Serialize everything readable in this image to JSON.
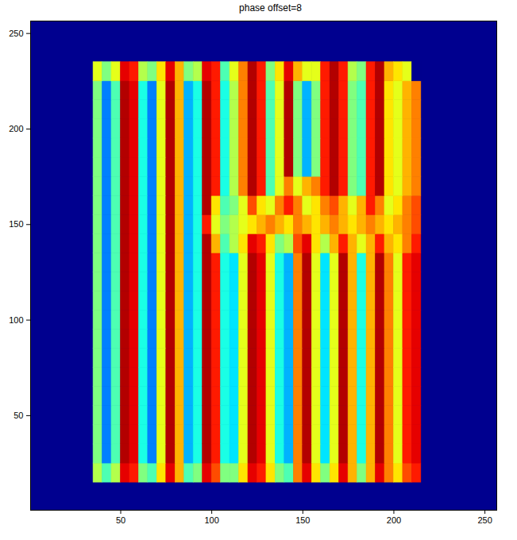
{
  "chart_data": {
    "type": "heatmap",
    "title": "phase offset=8",
    "xlim": [
      0.5,
      256.5
    ],
    "ylim": [
      0.5,
      256.5
    ],
    "xticks": [
      50,
      100,
      150,
      200,
      250
    ],
    "yticks": [
      50,
      100,
      150,
      200,
      250
    ],
    "clim": [
      0,
      1
    ],
    "background": 0,
    "x": [
      37.5,
      42.5,
      47.5,
      52.5,
      57.5,
      62.5,
      67.5,
      72.5,
      77.5,
      82.5,
      87.5,
      92.5,
      97.5,
      102.5,
      107.5,
      112.5,
      117.5,
      122.5,
      127.5,
      132.5,
      137.5,
      142.5,
      147.5,
      152.5,
      157.5,
      162.5,
      167.5,
      172.5,
      177.5,
      182.5,
      187.5,
      192.5,
      197.5,
      202.5,
      207.5,
      212.5
    ],
    "y": [
      20,
      30,
      40,
      50,
      60,
      70,
      80,
      90,
      100,
      110,
      120,
      130,
      140,
      150,
      160,
      170,
      180,
      190,
      200,
      210,
      220,
      230
    ],
    "values": [
      [
        0.55,
        0.45,
        0.55,
        0.9,
        0.85,
        0.5,
        0.45,
        0.65,
        0.9,
        0.7,
        0.45,
        0.5,
        0.9,
        0.8,
        0.5,
        0.5,
        0.65,
        0.9,
        0.85,
        0.65,
        0.5,
        0.45,
        0.75,
        0.9,
        0.65,
        0.5,
        0.65,
        0.9,
        0.7,
        0.5,
        0.7,
        0.9,
        0.75,
        0.65,
        0.8,
        0.85
      ],
      [
        0.5,
        0.25,
        0.45,
        0.95,
        0.9,
        0.4,
        0.25,
        0.6,
        0.95,
        0.7,
        0.3,
        0.4,
        0.95,
        0.85,
        0.4,
        0.35,
        0.6,
        0.95,
        0.9,
        0.6,
        0.4,
        0.3,
        0.75,
        0.95,
        0.6,
        0.35,
        0.6,
        0.95,
        0.7,
        0.4,
        0.7,
        0.95,
        0.75,
        0.6,
        0.85,
        0.9
      ],
      [
        0.5,
        0.25,
        0.45,
        0.95,
        0.9,
        0.4,
        0.25,
        0.6,
        0.95,
        0.7,
        0.3,
        0.4,
        0.95,
        0.85,
        0.4,
        0.35,
        0.6,
        0.95,
        0.9,
        0.6,
        0.4,
        0.3,
        0.75,
        0.95,
        0.6,
        0.35,
        0.6,
        0.95,
        0.7,
        0.4,
        0.7,
        0.95,
        0.75,
        0.6,
        0.85,
        0.9
      ],
      [
        0.5,
        0.25,
        0.45,
        0.95,
        0.9,
        0.4,
        0.25,
        0.6,
        0.95,
        0.7,
        0.3,
        0.4,
        0.95,
        0.85,
        0.4,
        0.35,
        0.6,
        0.95,
        0.9,
        0.6,
        0.4,
        0.3,
        0.75,
        0.95,
        0.6,
        0.35,
        0.6,
        0.95,
        0.7,
        0.4,
        0.7,
        0.95,
        0.75,
        0.6,
        0.85,
        0.9
      ],
      [
        0.5,
        0.25,
        0.45,
        0.95,
        0.9,
        0.4,
        0.25,
        0.6,
        0.95,
        0.7,
        0.3,
        0.4,
        0.95,
        0.85,
        0.4,
        0.35,
        0.6,
        0.95,
        0.9,
        0.6,
        0.4,
        0.3,
        0.75,
        0.95,
        0.6,
        0.35,
        0.6,
        0.95,
        0.7,
        0.4,
        0.7,
        0.95,
        0.75,
        0.6,
        0.85,
        0.9
      ],
      [
        0.5,
        0.25,
        0.45,
        0.95,
        0.9,
        0.4,
        0.25,
        0.6,
        0.95,
        0.7,
        0.3,
        0.4,
        0.95,
        0.85,
        0.4,
        0.35,
        0.6,
        0.95,
        0.9,
        0.6,
        0.4,
        0.3,
        0.75,
        0.95,
        0.6,
        0.35,
        0.6,
        0.95,
        0.7,
        0.4,
        0.7,
        0.95,
        0.75,
        0.6,
        0.85,
        0.9
      ],
      [
        0.5,
        0.25,
        0.45,
        0.95,
        0.9,
        0.4,
        0.25,
        0.6,
        0.95,
        0.7,
        0.3,
        0.4,
        0.95,
        0.85,
        0.4,
        0.35,
        0.6,
        0.95,
        0.9,
        0.6,
        0.4,
        0.3,
        0.75,
        0.95,
        0.6,
        0.35,
        0.6,
        0.95,
        0.7,
        0.4,
        0.7,
        0.95,
        0.75,
        0.6,
        0.85,
        0.9
      ],
      [
        0.5,
        0.25,
        0.45,
        0.95,
        0.9,
        0.4,
        0.25,
        0.6,
        0.95,
        0.7,
        0.3,
        0.4,
        0.95,
        0.85,
        0.4,
        0.35,
        0.6,
        0.95,
        0.9,
        0.6,
        0.4,
        0.3,
        0.75,
        0.95,
        0.6,
        0.35,
        0.6,
        0.95,
        0.7,
        0.4,
        0.7,
        0.95,
        0.75,
        0.6,
        0.85,
        0.9
      ],
      [
        0.5,
        0.25,
        0.45,
        0.95,
        0.9,
        0.4,
        0.25,
        0.6,
        0.95,
        0.7,
        0.3,
        0.4,
        0.95,
        0.85,
        0.4,
        0.35,
        0.6,
        0.95,
        0.9,
        0.6,
        0.4,
        0.3,
        0.75,
        0.95,
        0.6,
        0.35,
        0.6,
        0.95,
        0.7,
        0.4,
        0.7,
        0.95,
        0.75,
        0.6,
        0.85,
        0.9
      ],
      [
        0.5,
        0.25,
        0.45,
        0.95,
        0.9,
        0.4,
        0.25,
        0.6,
        0.95,
        0.7,
        0.3,
        0.4,
        0.95,
        0.85,
        0.4,
        0.35,
        0.6,
        0.95,
        0.9,
        0.6,
        0.4,
        0.3,
        0.75,
        0.95,
        0.6,
        0.35,
        0.6,
        0.95,
        0.7,
        0.4,
        0.7,
        0.95,
        0.75,
        0.6,
        0.85,
        0.9
      ],
      [
        0.5,
        0.25,
        0.45,
        0.95,
        0.9,
        0.4,
        0.25,
        0.6,
        0.95,
        0.7,
        0.3,
        0.4,
        0.95,
        0.85,
        0.4,
        0.35,
        0.6,
        0.95,
        0.9,
        0.6,
        0.4,
        0.3,
        0.75,
        0.95,
        0.6,
        0.35,
        0.6,
        0.95,
        0.7,
        0.4,
        0.7,
        0.95,
        0.75,
        0.6,
        0.85,
        0.9
      ],
      [
        0.5,
        0.25,
        0.45,
        0.95,
        0.9,
        0.4,
        0.25,
        0.6,
        0.95,
        0.7,
        0.3,
        0.4,
        0.95,
        0.85,
        0.4,
        0.35,
        0.6,
        0.95,
        0.9,
        0.6,
        0.4,
        0.3,
        0.75,
        0.95,
        0.6,
        0.35,
        0.6,
        0.95,
        0.7,
        0.4,
        0.7,
        0.95,
        0.75,
        0.6,
        0.85,
        0.9
      ],
      [
        0.5,
        0.25,
        0.45,
        0.95,
        0.9,
        0.4,
        0.25,
        0.6,
        0.95,
        0.7,
        0.3,
        0.4,
        0.95,
        0.7,
        0.45,
        0.55,
        0.65,
        0.9,
        0.85,
        0.65,
        0.5,
        0.55,
        0.8,
        0.9,
        0.65,
        0.55,
        0.7,
        0.85,
        0.7,
        0.6,
        0.7,
        0.85,
        0.7,
        0.65,
        0.75,
        0.85
      ],
      [
        0.5,
        0.25,
        0.45,
        0.95,
        0.9,
        0.4,
        0.25,
        0.6,
        0.95,
        0.7,
        0.3,
        0.4,
        0.85,
        0.6,
        0.5,
        0.55,
        0.6,
        0.65,
        0.7,
        0.75,
        0.7,
        0.65,
        0.75,
        0.7,
        0.65,
        0.7,
        0.75,
        0.7,
        0.65,
        0.7,
        0.75,
        0.7,
        0.65,
        0.7,
        0.75,
        0.8
      ],
      [
        0.5,
        0.25,
        0.45,
        0.95,
        0.9,
        0.4,
        0.25,
        0.6,
        0.95,
        0.7,
        0.3,
        0.4,
        0.95,
        0.65,
        0.45,
        0.5,
        0.6,
        0.8,
        0.65,
        0.6,
        0.75,
        0.85,
        0.75,
        0.6,
        0.65,
        0.75,
        0.8,
        0.7,
        0.6,
        0.7,
        0.85,
        0.75,
        0.6,
        0.65,
        0.75,
        0.8
      ],
      [
        0.5,
        0.25,
        0.45,
        0.95,
        0.9,
        0.4,
        0.25,
        0.6,
        0.95,
        0.7,
        0.3,
        0.4,
        0.95,
        0.85,
        0.4,
        0.55,
        0.75,
        0.95,
        0.85,
        0.45,
        0.6,
        0.75,
        0.6,
        0.7,
        0.75,
        0.85,
        0.95,
        0.85,
        0.5,
        0.45,
        0.85,
        0.95,
        0.65,
        0.6,
        0.7,
        0.75
      ],
      [
        0.5,
        0.25,
        0.45,
        0.95,
        0.9,
        0.4,
        0.25,
        0.6,
        0.95,
        0.7,
        0.3,
        0.4,
        0.95,
        0.85,
        0.4,
        0.55,
        0.75,
        0.95,
        0.85,
        0.45,
        0.6,
        0.95,
        0.5,
        0.3,
        0.5,
        0.85,
        0.95,
        0.85,
        0.5,
        0.45,
        0.85,
        0.95,
        0.65,
        0.6,
        0.7,
        0.75
      ],
      [
        0.5,
        0.25,
        0.45,
        0.95,
        0.9,
        0.4,
        0.25,
        0.6,
        0.95,
        0.7,
        0.3,
        0.4,
        0.95,
        0.85,
        0.4,
        0.55,
        0.75,
        0.95,
        0.85,
        0.45,
        0.6,
        0.95,
        0.5,
        0.3,
        0.5,
        0.85,
        0.95,
        0.85,
        0.5,
        0.45,
        0.85,
        0.95,
        0.65,
        0.6,
        0.7,
        0.75
      ],
      [
        0.5,
        0.25,
        0.45,
        0.95,
        0.9,
        0.4,
        0.25,
        0.6,
        0.95,
        0.7,
        0.3,
        0.4,
        0.95,
        0.85,
        0.4,
        0.55,
        0.75,
        0.95,
        0.85,
        0.45,
        0.6,
        0.95,
        0.5,
        0.3,
        0.5,
        0.85,
        0.95,
        0.85,
        0.5,
        0.45,
        0.85,
        0.95,
        0.65,
        0.6,
        0.7,
        0.75
      ],
      [
        0.5,
        0.25,
        0.45,
        0.95,
        0.9,
        0.4,
        0.25,
        0.6,
        0.95,
        0.7,
        0.3,
        0.4,
        0.95,
        0.85,
        0.4,
        0.55,
        0.75,
        0.95,
        0.85,
        0.45,
        0.6,
        0.95,
        0.5,
        0.3,
        0.5,
        0.85,
        0.95,
        0.85,
        0.5,
        0.45,
        0.85,
        0.95,
        0.65,
        0.6,
        0.7,
        0.75
      ],
      [
        0.5,
        0.25,
        0.45,
        0.95,
        0.9,
        0.4,
        0.25,
        0.6,
        0.95,
        0.7,
        0.3,
        0.4,
        0.95,
        0.85,
        0.4,
        0.55,
        0.75,
        0.95,
        0.85,
        0.45,
        0.6,
        0.95,
        0.5,
        0.3,
        0.5,
        0.85,
        0.95,
        0.85,
        0.5,
        0.45,
        0.85,
        0.95,
        0.65,
        0.6,
        0.7,
        0.75
      ],
      [
        0.6,
        0.5,
        0.6,
        0.9,
        0.85,
        0.55,
        0.5,
        0.65,
        0.9,
        0.7,
        0.5,
        0.55,
        0.9,
        0.85,
        0.45,
        0.6,
        0.75,
        0.95,
        0.85,
        0.5,
        0.65,
        0.9,
        0.7,
        0.6,
        0.6,
        0.85,
        0.95,
        0.85,
        0.55,
        0.5,
        0.85,
        0.95,
        0.7,
        0.65,
        0.6,
        0
      ]
    ]
  }
}
